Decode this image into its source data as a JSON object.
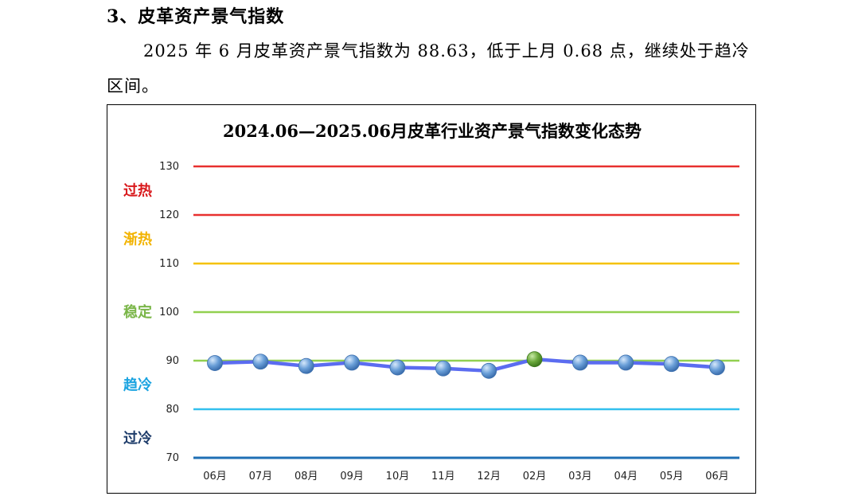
{
  "section": {
    "heading": "3、皮革资产景气指数",
    "paragraph": "2025 年 6 月皮革资产景气指数为 88.63，低于上月 0.68 点，继续处于趋冷区间。"
  },
  "chart_data": {
    "type": "line",
    "title": "2024.06—2025.06月皮革行业资产景气指数变化态势",
    "categories": [
      "06月",
      "07月",
      "08月",
      "09月",
      "10月",
      "11月",
      "12月",
      "02月",
      "03月",
      "04月",
      "05月",
      "06月"
    ],
    "values": [
      89.5,
      89.8,
      88.9,
      89.6,
      88.6,
      88.4,
      87.9,
      90.3,
      89.6,
      89.6,
      89.31,
      88.63
    ],
    "highlight_index": 7,
    "ylim": [
      70,
      130
    ],
    "yticks": [
      70,
      80,
      90,
      100,
      110,
      120,
      130
    ],
    "reference_lines": [
      {
        "value": 130,
        "color": "#e8302f"
      },
      {
        "value": 120,
        "color": "#e8302f"
      },
      {
        "value": 110,
        "color": "#f5c200"
      },
      {
        "value": 100,
        "color": "#92d050"
      },
      {
        "value": 90,
        "color": "#92d050"
      },
      {
        "value": 80,
        "color": "#33c0ee"
      },
      {
        "value": 70,
        "color": "#1f6fb5"
      }
    ],
    "zones": [
      {
        "label": "过热",
        "center": 125,
        "color": "#d9191c"
      },
      {
        "label": "渐热",
        "center": 115,
        "color": "#f2b300"
      },
      {
        "label": "稳定",
        "center": 100,
        "color": "#7ab648"
      },
      {
        "label": "趋冷",
        "center": 85,
        "color": "#1aa3e0"
      },
      {
        "label": "过冷",
        "center": 74,
        "color": "#1f3d6b"
      }
    ],
    "line_color": "#5b6cf0",
    "marker_color": "#6a9fd8",
    "highlight_color": "#6aa83a",
    "grid": false,
    "legend": "none"
  }
}
